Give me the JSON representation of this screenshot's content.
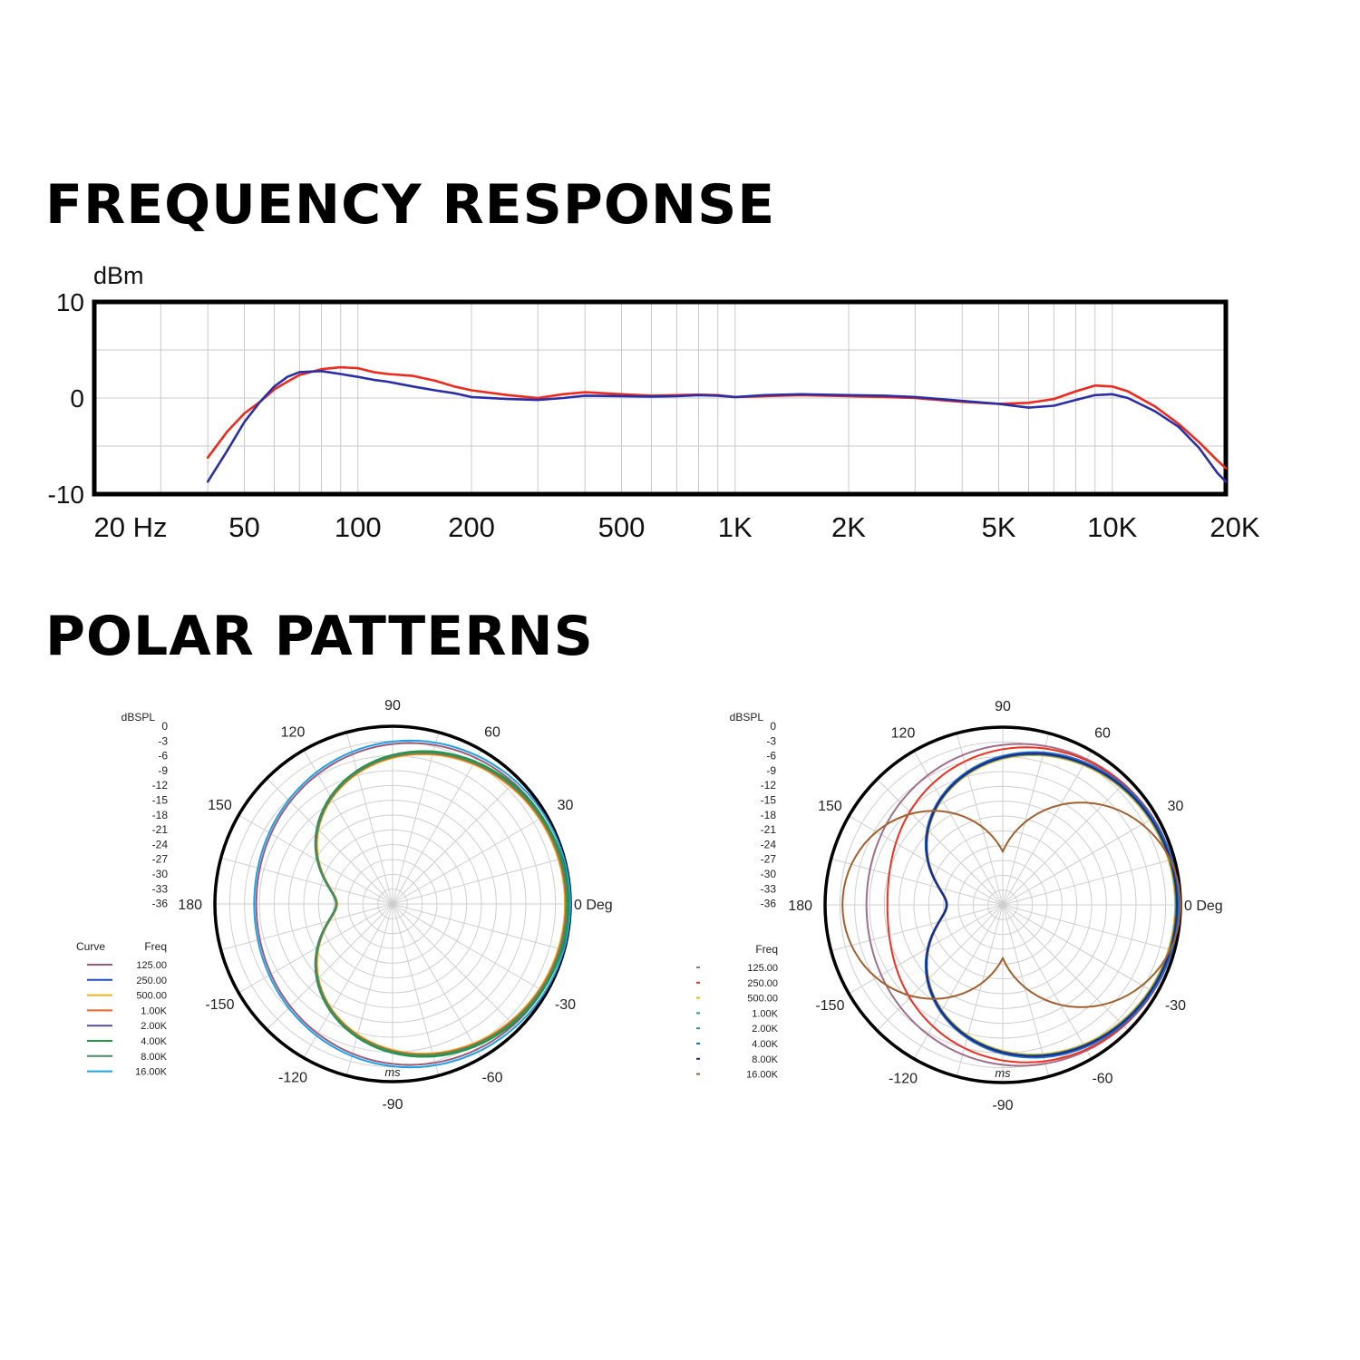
{
  "sections": {
    "frequency_title": "FREQUENCY RESPONSE",
    "polar_title": "POLAR PATTERNS"
  },
  "chart_data": [
    {
      "type": "line",
      "ylabel": "dBm",
      "xscale": "log",
      "xlim": [
        20,
        20000
      ],
      "ylim": [
        -10,
        10
      ],
      "grid": true,
      "x_ticks": [
        {
          "value": 20,
          "label": "20 Hz"
        },
        {
          "value": 50,
          "label": "50"
        },
        {
          "value": 100,
          "label": "100"
        },
        {
          "value": 200,
          "label": "200"
        },
        {
          "value": 500,
          "label": "500"
        },
        {
          "value": 1000,
          "label": "1K"
        },
        {
          "value": 2000,
          "label": "2K"
        },
        {
          "value": 5000,
          "label": "5K"
        },
        {
          "value": 10000,
          "label": "10K"
        },
        {
          "value": 20000,
          "label": "20K"
        }
      ],
      "y_ticks": [
        {
          "value": 10,
          "label": "10"
        },
        {
          "value": 0,
          "label": "0"
        },
        {
          "value": -10,
          "label": "-10"
        }
      ],
      "series": [
        {
          "color": "#ee2a1c",
          "points": [
            [
              40,
              -6.2
            ],
            [
              45,
              -3.5
            ],
            [
              50,
              -1.6
            ],
            [
              55,
              -0.4
            ],
            [
              60,
              0.9
            ],
            [
              65,
              1.7
            ],
            [
              70,
              2.4
            ],
            [
              80,
              3.0
            ],
            [
              90,
              3.2
            ],
            [
              100,
              3.1
            ],
            [
              110,
              2.7
            ],
            [
              120,
              2.5
            ],
            [
              140,
              2.3
            ],
            [
              160,
              1.8
            ],
            [
              180,
              1.2
            ],
            [
              200,
              0.8
            ],
            [
              250,
              0.3
            ],
            [
              300,
              0.0
            ],
            [
              350,
              0.4
            ],
            [
              400,
              0.6
            ],
            [
              500,
              0.4
            ],
            [
              600,
              0.25
            ],
            [
              700,
              0.3
            ],
            [
              800,
              0.35
            ],
            [
              900,
              0.3
            ],
            [
              1000,
              0.1
            ],
            [
              1200,
              0.2
            ],
            [
              1500,
              0.3
            ],
            [
              2000,
              0.2
            ],
            [
              2500,
              0.1
            ],
            [
              3000,
              0.0
            ],
            [
              4000,
              -0.4
            ],
            [
              5000,
              -0.6
            ],
            [
              6000,
              -0.5
            ],
            [
              7000,
              -0.1
            ],
            [
              8000,
              0.7
            ],
            [
              9000,
              1.3
            ],
            [
              10000,
              1.2
            ],
            [
              11000,
              0.7
            ],
            [
              13000,
              -0.9
            ],
            [
              15000,
              -2.7
            ],
            [
              17000,
              -4.6
            ],
            [
              19000,
              -6.5
            ],
            [
              20000,
              -7.3
            ]
          ]
        },
        {
          "color": "#2a2fa6",
          "points": [
            [
              40,
              -8.7
            ],
            [
              45,
              -5.5
            ],
            [
              50,
              -2.5
            ],
            [
              55,
              -0.4
            ],
            [
              60,
              1.2
            ],
            [
              65,
              2.2
            ],
            [
              70,
              2.7
            ],
            [
              80,
              2.8
            ],
            [
              90,
              2.5
            ],
            [
              100,
              2.2
            ],
            [
              110,
              1.9
            ],
            [
              120,
              1.7
            ],
            [
              140,
              1.2
            ],
            [
              160,
              0.8
            ],
            [
              180,
              0.5
            ],
            [
              200,
              0.1
            ],
            [
              250,
              -0.1
            ],
            [
              300,
              -0.2
            ],
            [
              350,
              0.0
            ],
            [
              400,
              0.25
            ],
            [
              500,
              0.2
            ],
            [
              600,
              0.15
            ],
            [
              700,
              0.2
            ],
            [
              800,
              0.3
            ],
            [
              900,
              0.25
            ],
            [
              1000,
              0.1
            ],
            [
              1200,
              0.3
            ],
            [
              1500,
              0.4
            ],
            [
              2000,
              0.3
            ],
            [
              2500,
              0.25
            ],
            [
              3000,
              0.1
            ],
            [
              4000,
              -0.3
            ],
            [
              5000,
              -0.6
            ],
            [
              6000,
              -1.0
            ],
            [
              7000,
              -0.8
            ],
            [
              8000,
              -0.2
            ],
            [
              9000,
              0.3
            ],
            [
              10000,
              0.4
            ],
            [
              11000,
              0.0
            ],
            [
              13000,
              -1.4
            ],
            [
              15000,
              -3.0
            ],
            [
              17000,
              -5.2
            ],
            [
              19000,
              -7.8
            ],
            [
              20000,
              -8.7
            ]
          ]
        }
      ]
    },
    {
      "type": "polar",
      "unit_label": "dBSPL",
      "radial_ticks": [
        "0",
        "-3",
        "-6",
        "-9",
        "-12",
        "-15",
        "-18",
        "-21",
        "-24",
        "-27",
        "-30",
        "-33",
        "-36"
      ],
      "angle_labels": [
        "0 Deg",
        "30",
        "60",
        "90",
        "120",
        "150",
        "180",
        "-150",
        "-120",
        "-90",
        "-60",
        "-30"
      ],
      "legend_headers": {
        "curve": "Curve",
        "freq": "Freq"
      },
      "watermark": "ms",
      "series": [
        {
          "name": "125.00",
          "color": "#9b5c78",
          "pattern": "wide-cardioid"
        },
        {
          "name": "250.00",
          "color": "#1f4fbf",
          "pattern": "cardioid"
        },
        {
          "name": "500.00",
          "color": "#f0b21a",
          "pattern": "cardioid"
        },
        {
          "name": "1.00K",
          "color": "#f0642a",
          "pattern": "cardioid"
        },
        {
          "name": "2.00K",
          "color": "#5a4f8f",
          "pattern": "cardioid"
        },
        {
          "name": "4.00K",
          "color": "#1e9a40",
          "pattern": "cardioid"
        },
        {
          "name": "8.00K",
          "color": "#4a8a60",
          "pattern": "cardioid"
        },
        {
          "name": "16.00K",
          "color": "#1fa0e8",
          "pattern": "wide-cardioid"
        }
      ]
    },
    {
      "type": "polar",
      "unit_label": "dBSPL",
      "radial_ticks": [
        "0",
        "-3",
        "-6",
        "-9",
        "-12",
        "-15",
        "-18",
        "-21",
        "-24",
        "-27",
        "-30",
        "-33",
        "-36"
      ],
      "angle_labels": [
        "0 Deg",
        "30",
        "60",
        "90",
        "120",
        "150",
        "180",
        "-150",
        "-120",
        "-90",
        "-60",
        "-30"
      ],
      "legend_headers": {
        "curve": "",
        "freq": "Freq"
      },
      "watermark": "ms",
      "series": [
        {
          "name": "125.00",
          "color": "#a06f8a",
          "pattern": "wide-cardioid"
        },
        {
          "name": "250.00",
          "color": "#ef3020",
          "pattern": "subcardioid"
        },
        {
          "name": "500.00",
          "color": "#f0b21a",
          "pattern": "cardioid"
        },
        {
          "name": "1.00K",
          "color": "#2a9a8a",
          "pattern": "cardioid"
        },
        {
          "name": "2.00K",
          "color": "#4a7fa0",
          "pattern": "cardioid"
        },
        {
          "name": "4.00K",
          "color": "#1f6fc0",
          "pattern": "cardioid"
        },
        {
          "name": "8.00K",
          "color": "#23248a",
          "pattern": "cardioid"
        },
        {
          "name": "16.00K",
          "color": "#a3602e",
          "pattern": "figure-eight"
        }
      ]
    }
  ]
}
